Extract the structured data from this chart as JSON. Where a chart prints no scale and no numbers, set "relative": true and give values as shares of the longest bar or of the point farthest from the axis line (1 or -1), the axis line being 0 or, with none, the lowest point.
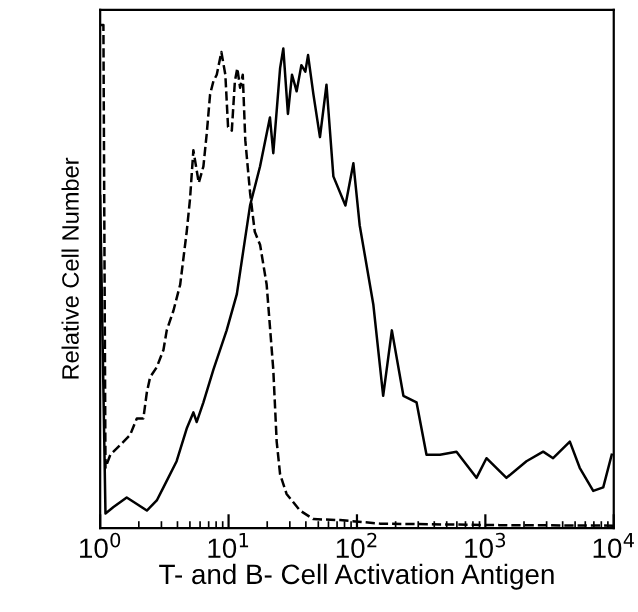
{
  "chart_data": {
    "type": "line",
    "relative": true,
    "xlabel": "T- and B- Cell Activation Antigen",
    "ylabel": "Relative Cell Number",
    "log": "x",
    "xlim": [
      1,
      10000
    ],
    "xticks": [
      {
        "value": 1,
        "label": "10$^{0}$"
      },
      {
        "value": 10,
        "label": "10$^{1}$"
      },
      {
        "value": 100,
        "label": "10$^{2}$"
      },
      {
        "value": 1000,
        "label": "10$^{3}$"
      },
      {
        "value": 10000,
        "label": "10$^{4}$"
      }
    ],
    "grid": false,
    "legend": false,
    "marker": "none",
    "series": [
      {
        "color": "#000000",
        "line_style": "dashed",
        "x": [
          1.0,
          1.06,
          1.1,
          1.2,
          1.43,
          1.71,
          1.93,
          2.17,
          2.31,
          2.45,
          2.76,
          3.11,
          3.3,
          3.72,
          4.2,
          4.72,
          5.01,
          5.32,
          5.86,
          6.37,
          6.76,
          7.18,
          7.62,
          8.09,
          8.79,
          9.44,
          9.91,
          10.6,
          11.2,
          11.7,
          12.3,
          12.9,
          13.5,
          14.7,
          16.0,
          17.6,
          19.8,
          22.3,
          23.7,
          25.2,
          28.3,
          36.0,
          45.8,
          73.8,
          151,
          1290,
          10000
        ],
        "values": [
          1.0,
          1.0,
          0.12,
          0.146,
          0.165,
          0.185,
          0.218,
          0.218,
          0.27,
          0.3,
          0.32,
          0.354,
          0.393,
          0.432,
          0.484,
          0.589,
          0.654,
          0.751,
          0.686,
          0.719,
          0.784,
          0.862,
          0.888,
          0.901,
          0.946,
          0.901,
          0.797,
          0.79,
          0.888,
          0.914,
          0.875,
          0.901,
          0.771,
          0.667,
          0.589,
          0.563,
          0.484,
          0.315,
          0.172,
          0.107,
          0.068,
          0.035,
          0.018,
          0.016,
          0.009,
          0.006,
          0.005
        ]
      },
      {
        "color": "#000000",
        "line_style": "solid",
        "x": [
          1.0,
          1.1,
          1.27,
          1.61,
          1.93,
          2.31,
          2.76,
          3.11,
          3.94,
          4.72,
          5.32,
          5.65,
          6.37,
          7.62,
          9.66,
          11.6,
          13.0,
          14.7,
          17.6,
          21.0,
          22.3,
          25.2,
          26.7,
          29.0,
          31.2,
          33.9,
          36.9,
          39.6,
          41.6,
          45.8,
          51.5,
          57.9,
          65.5,
          81.3,
          93.8,
          105,
          134,
          160,
          187,
          230,
          291,
          348,
          443,
          596,
          853,
          1020,
          1460,
          2090,
          2820,
          3370,
          4550,
          5430,
          6920,
          8280,
          9640
        ],
        "values": [
          0.66,
          0.029,
          0.042,
          0.061,
          0.048,
          0.035,
          0.055,
          0.081,
          0.133,
          0.198,
          0.23,
          0.211,
          0.25,
          0.315,
          0.393,
          0.465,
          0.55,
          0.641,
          0.719,
          0.816,
          0.745,
          0.914,
          0.953,
          0.823,
          0.901,
          0.868,
          0.92,
          0.907,
          0.94,
          0.862,
          0.777,
          0.881,
          0.699,
          0.641,
          0.725,
          0.602,
          0.445,
          0.263,
          0.393,
          0.263,
          0.25,
          0.146,
          0.146,
          0.152,
          0.1,
          0.139,
          0.1,
          0.133,
          0.152,
          0.139,
          0.172,
          0.12,
          0.074,
          0.081,
          0.146
        ]
      }
    ]
  }
}
